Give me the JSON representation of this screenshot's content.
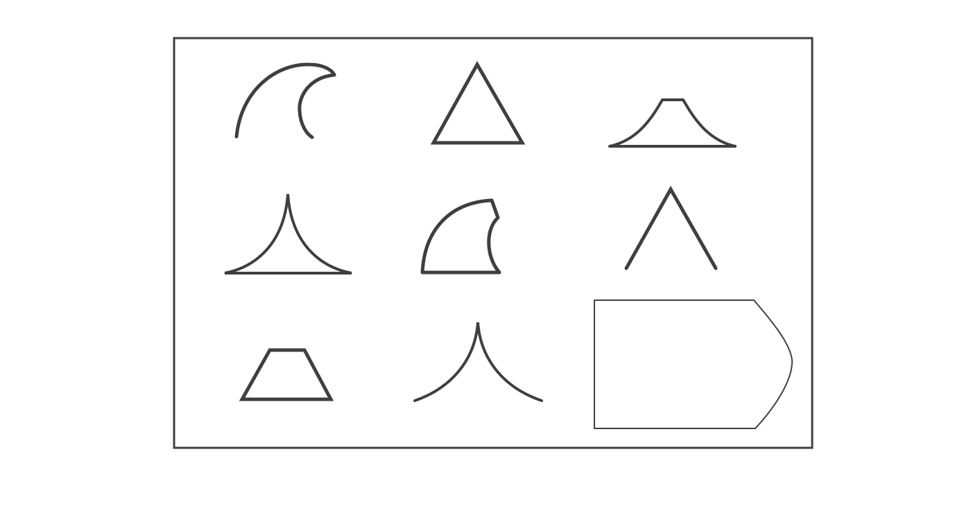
{
  "puzzle": {
    "cells": [
      {
        "id": "cell-1",
        "shape": "two-arcs",
        "row": 1,
        "col": 1,
        "stroke_width": "bold"
      },
      {
        "id": "cell-2",
        "shape": "triangle",
        "row": 1,
        "col": 2,
        "stroke_width": "bold"
      },
      {
        "id": "cell-3",
        "shape": "concave-trapezoid",
        "row": 1,
        "col": 3,
        "stroke_width": "bold"
      },
      {
        "id": "cell-4",
        "shape": "concave-triangle",
        "row": 2,
        "col": 1,
        "stroke_width": "bold"
      },
      {
        "id": "cell-5",
        "shape": "curved-quadrilateral",
        "row": 2,
        "col": 2,
        "stroke_width": "bold"
      },
      {
        "id": "cell-6",
        "shape": "caret",
        "row": 2,
        "col": 3,
        "stroke_width": "bold"
      },
      {
        "id": "cell-7",
        "shape": "trapezoid",
        "row": 3,
        "col": 1,
        "stroke_width": "bold"
      },
      {
        "id": "cell-8",
        "shape": "concave-caret",
        "row": 3,
        "col": 2,
        "stroke_width": "bold"
      },
      {
        "id": "cell-9",
        "shape": "blank-answer-box",
        "row": 3,
        "col": 3,
        "stroke_width": "thin"
      }
    ],
    "colors": {
      "stroke": "#3f3f3f",
      "background": "#ffffff"
    }
  }
}
